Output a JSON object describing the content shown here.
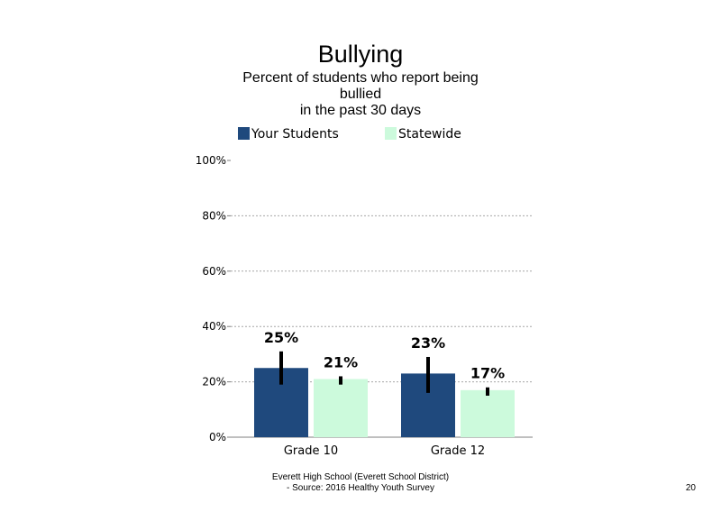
{
  "chart_data": {
    "type": "bar",
    "title": "Bullying",
    "subtitle": "Percent of students who report being bullied in the past 30 days",
    "subtitle_lines": [
      "Percent of students  who report being",
      "bullied",
      "in the past 30 days"
    ],
    "categories": [
      "Grade 10",
      "Grade 12"
    ],
    "series": [
      {
        "name": "Your Students",
        "color": "#1f497d",
        "values": [
          25,
          23
        ],
        "labels": [
          "25%",
          "23%"
        ],
        "error_low": [
          19,
          16
        ],
        "error_high": [
          31,
          29
        ]
      },
      {
        "name": "Statewide",
        "color": "#ccfadc",
        "values": [
          21,
          17
        ],
        "labels": [
          "21%",
          "17%"
        ],
        "error_low": [
          19,
          15
        ],
        "error_high": [
          22,
          18
        ]
      }
    ],
    "ylim": [
      0,
      100
    ],
    "yticks": [
      0,
      20,
      40,
      60,
      80,
      100
    ],
    "ytick_labels": [
      "0%",
      "20%",
      "40%",
      "60%",
      "80%",
      "100%"
    ],
    "xlabel": "",
    "ylabel": "",
    "grid": true,
    "legend_position": "top"
  },
  "footer": {
    "line1": "Everett High  School (Everett School District)",
    "line2": "- Source: 2016 Healthy  Youth Survey"
  },
  "page_number": "20"
}
